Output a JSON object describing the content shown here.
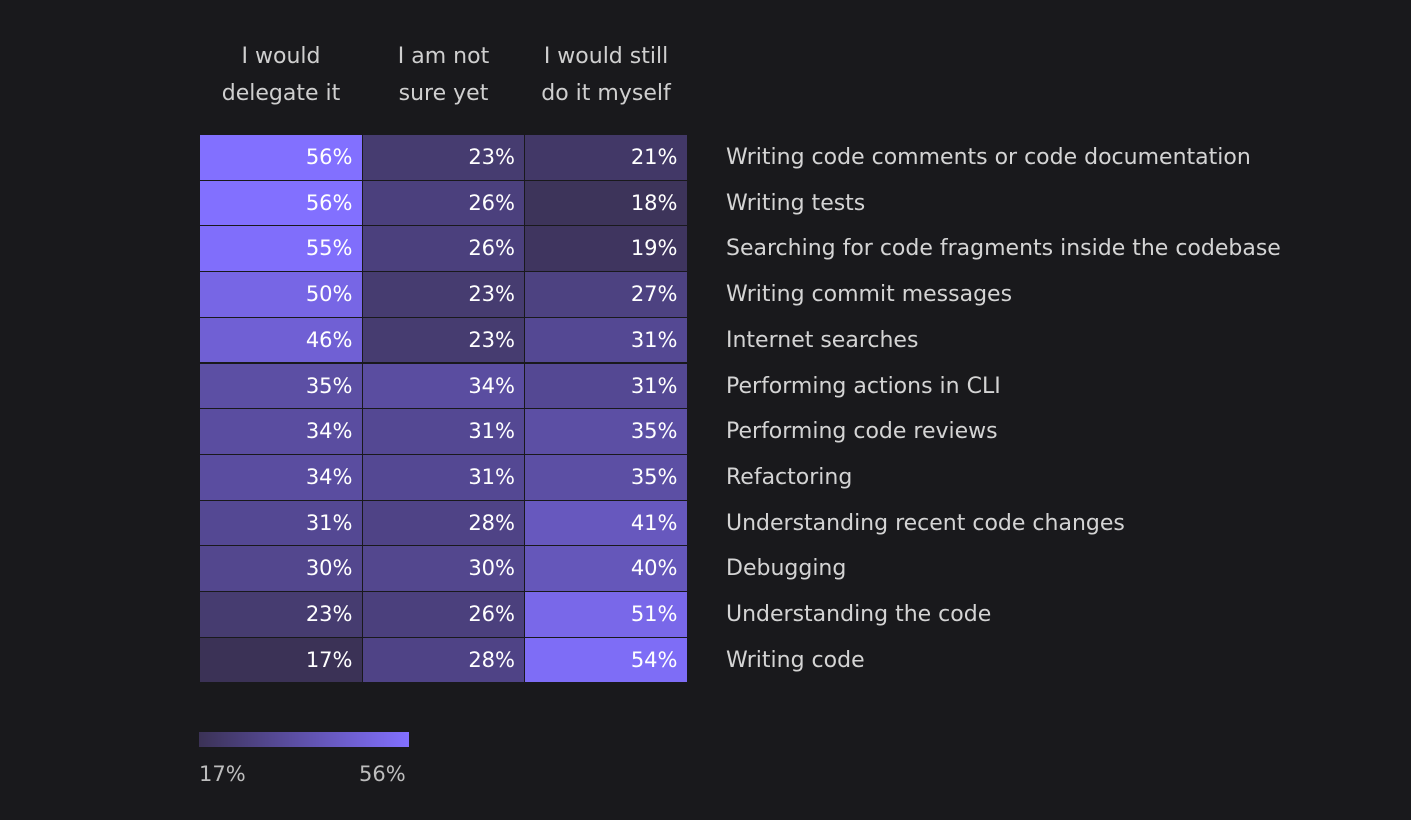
{
  "chart_data": {
    "type": "heatmap",
    "columns": [
      "I would delegate it",
      "I am not sure yet",
      "I would still do it myself"
    ],
    "columns_display": [
      "I would\ndelegate it",
      "I am not\nsure yet",
      "I would still\ndo it myself"
    ],
    "rows": [
      "Writing code comments or code documentation",
      "Writing tests",
      "Searching for code fragments inside the codebase",
      "Writing commit messages",
      "Internet searches",
      "Performing actions in CLI",
      "Performing code reviews",
      "Refactoring",
      "Understanding recent code changes",
      "Debugging",
      "Understanding the code",
      "Writing code"
    ],
    "values": [
      [
        56,
        23,
        21
      ],
      [
        56,
        26,
        18
      ],
      [
        55,
        26,
        19
      ],
      [
        50,
        23,
        27
      ],
      [
        46,
        23,
        31
      ],
      [
        35,
        34,
        31
      ],
      [
        34,
        31,
        35
      ],
      [
        34,
        31,
        35
      ],
      [
        31,
        28,
        41
      ],
      [
        30,
        30,
        40
      ],
      [
        23,
        26,
        51
      ],
      [
        17,
        28,
        54
      ]
    ],
    "value_suffix": "%",
    "color_scale": {
      "min": 17,
      "max": 56,
      "min_label": "17%",
      "max_label": "56%",
      "min_color": "#3b3256",
      "max_color": "#8270ff"
    }
  }
}
